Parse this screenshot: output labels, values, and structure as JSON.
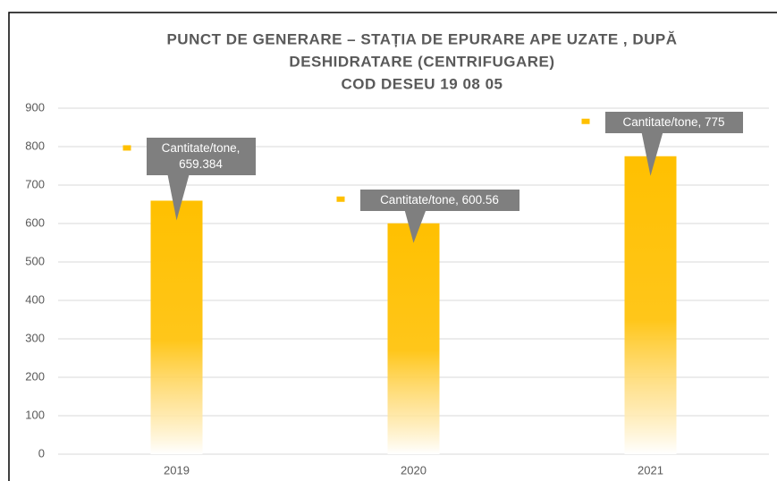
{
  "chart_data": {
    "type": "bar",
    "title": [
      "PUNCT DE GENERARE – STAȚIA DE EPURARE APE UZATE , DUPĂ",
      "DESHIDRATARE (CENTRIFUGARE)",
      "COD DESEU 19 08 05"
    ],
    "categories": [
      "2019",
      "2020",
      "2021"
    ],
    "series": [
      {
        "name": "Cantitate/tone",
        "color": "#ffc000",
        "values": [
          659.384,
          600.56,
          775
        ],
        "value_labels": [
          "Cantitate/tone, 659.384",
          "Cantitate/tone, 600.56",
          "Cantitate/tone, 775"
        ]
      }
    ],
    "ylim": [
      0,
      900
    ],
    "yticks": [
      0,
      100,
      200,
      300,
      400,
      500,
      600,
      700,
      800,
      900
    ],
    "grid": true
  }
}
